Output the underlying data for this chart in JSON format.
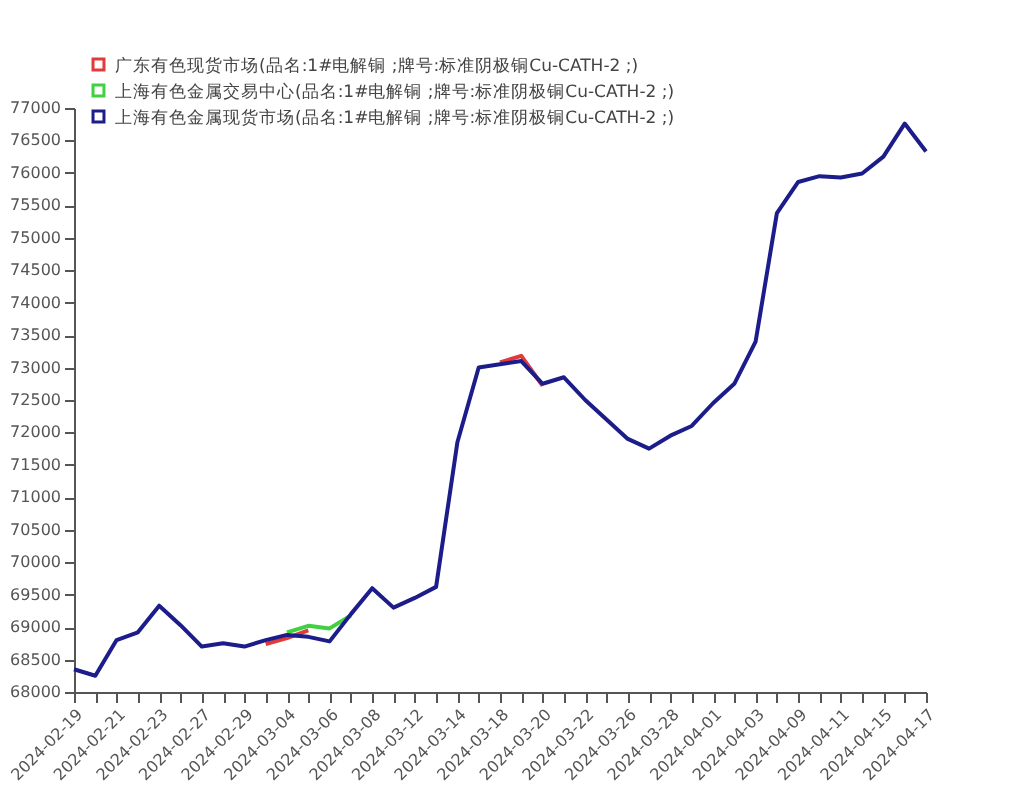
{
  "chart_data": {
    "type": "line",
    "categories": [
      "2024-02-19",
      null,
      "2024-02-21",
      null,
      "2024-02-23",
      null,
      "2024-02-27",
      null,
      "2024-02-29",
      null,
      "2024-03-04",
      null,
      "2024-03-06",
      null,
      "2024-03-08",
      null,
      "2024-03-12",
      null,
      "2024-03-14",
      null,
      "2024-03-18",
      null,
      "2024-03-20",
      null,
      "2024-03-22",
      null,
      "2024-03-26",
      null,
      "2024-03-28",
      null,
      "2024-04-01",
      null,
      "2024-04-03",
      null,
      "2024-04-09",
      null,
      "2024-04-11",
      null,
      "2024-04-15",
      null,
      "2024-04-17"
    ],
    "series": [
      {
        "name": "广东有色现货市场(品名:1#电解铜 ;牌号:标准阴极铜Cu-CATH-2 ;)",
        "color": "#e03a3a",
        "values": [
          null,
          null,
          null,
          null,
          null,
          null,
          null,
          null,
          null,
          68740,
          68830,
          68950,
          null,
          null,
          null,
          null,
          null,
          null,
          null,
          null,
          73080,
          73180,
          72720,
          null,
          null,
          null,
          null,
          null,
          null,
          null,
          null,
          null,
          null,
          null,
          null,
          null,
          null,
          null,
          null,
          null,
          null
        ]
      },
      {
        "name": "上海有色金属交易中心(品名:1#电解铜 ;牌号:标准阴极铜Cu-CATH-2 ;)",
        "color": "#40d040",
        "values": [
          null,
          null,
          null,
          null,
          null,
          null,
          null,
          null,
          null,
          null,
          68920,
          69020,
          68980,
          69180,
          null,
          null,
          null,
          null,
          null,
          null,
          null,
          null,
          null,
          null,
          null,
          null,
          null,
          null,
          null,
          null,
          null,
          null,
          null,
          null,
          null,
          null,
          null,
          null,
          null,
          null,
          null
        ]
      },
      {
        "name": "上海有色金属现货市场(品名:1#电解铜 ;牌号:标准阴极铜Cu-CATH-2 ;)",
        "color": "#1c1c8a",
        "values": [
          68350,
          68250,
          68800,
          68920,
          69330,
          69030,
          68700,
          68750,
          68700,
          68800,
          68880,
          68850,
          68780,
          69200,
          69600,
          69300,
          69450,
          69620,
          71850,
          73000,
          73050,
          73100,
          72750,
          72850,
          72500,
          72200,
          71900,
          71750,
          71950,
          72100,
          72450,
          72750,
          73400,
          75380,
          75860,
          75950,
          75930,
          75990,
          76250,
          76760,
          76330
        ]
      }
    ],
    "ylim": [
      68000,
      77000
    ],
    "yticks": [
      68000,
      68500,
      69000,
      69500,
      70000,
      70500,
      71000,
      71500,
      72000,
      72500,
      73000,
      73500,
      74000,
      74500,
      75000,
      75500,
      76000,
      76500,
      77000
    ],
    "legend": "top left",
    "grid": false,
    "marker": "none",
    "line_style": "solid"
  }
}
